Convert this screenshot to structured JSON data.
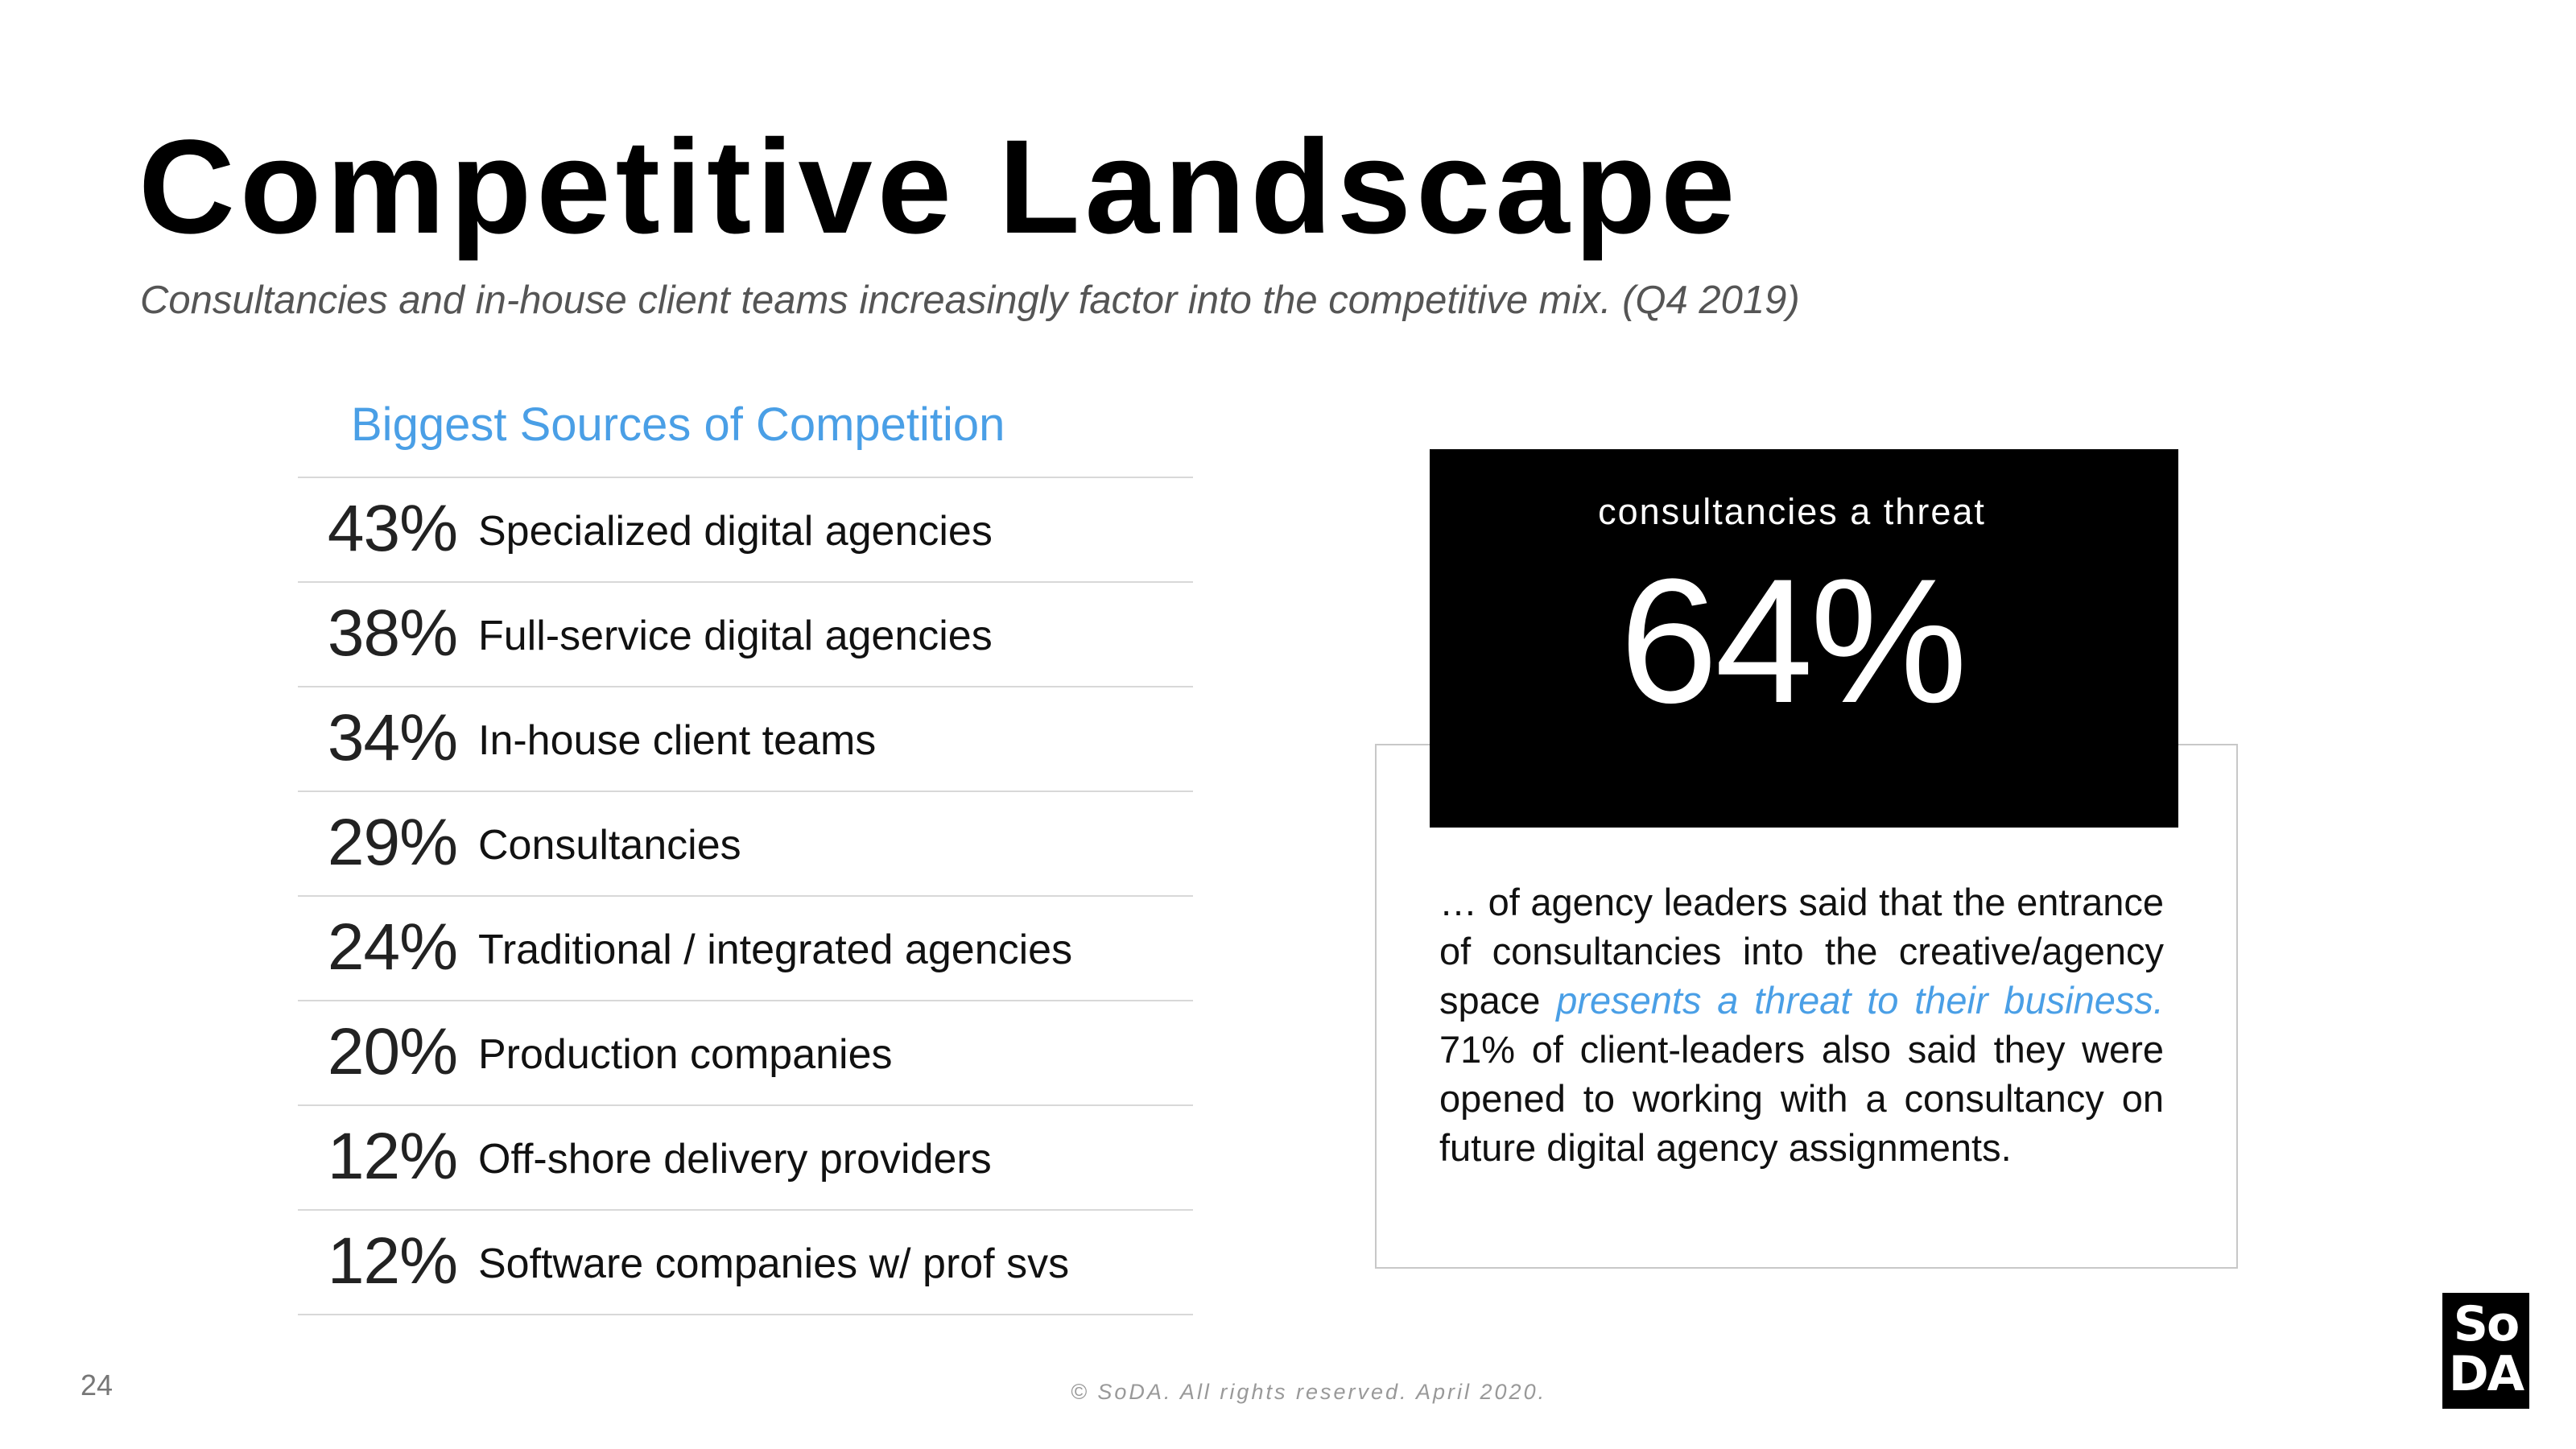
{
  "header": {
    "title": "Competitive Landscape",
    "subtitle": "Consultancies and in-house client teams increasingly factor into the competitive mix. (Q4 2019)"
  },
  "competition": {
    "heading": "Biggest Sources of Competition",
    "items": [
      {
        "pct": "43%",
        "label": "Specialized digital agencies"
      },
      {
        "pct": "38%",
        "label": "Full-service digital agencies"
      },
      {
        "pct": "34%",
        "label": "In-house client teams"
      },
      {
        "pct": "29%",
        "label": "Consultancies"
      },
      {
        "pct": "24%",
        "label": "Traditional / integrated agencies"
      },
      {
        "pct": "20%",
        "label": "Production companies"
      },
      {
        "pct": "12%",
        "label": "Off-shore delivery providers"
      },
      {
        "pct": "12%",
        "label": "Software companies w/ prof svs"
      }
    ]
  },
  "callout": {
    "caption": "consultancies a threat",
    "value": "64%",
    "text_part1": "… of agency leaders said that the entrance of consultancies into the creative/agency space ",
    "text_highlight": "presents a threat to their business.",
    "text_part2": " 71% of client-leaders also said they were opened to working with a consultancy on future digital agency assignments."
  },
  "footer": {
    "page_number": "24",
    "copyright": "© SoDA. All rights reserved. April 2020."
  },
  "logo": {
    "line1": "So",
    "line2": "DA"
  },
  "colors": {
    "accent": "#4a9fe6",
    "callout_bg": "#000000"
  }
}
